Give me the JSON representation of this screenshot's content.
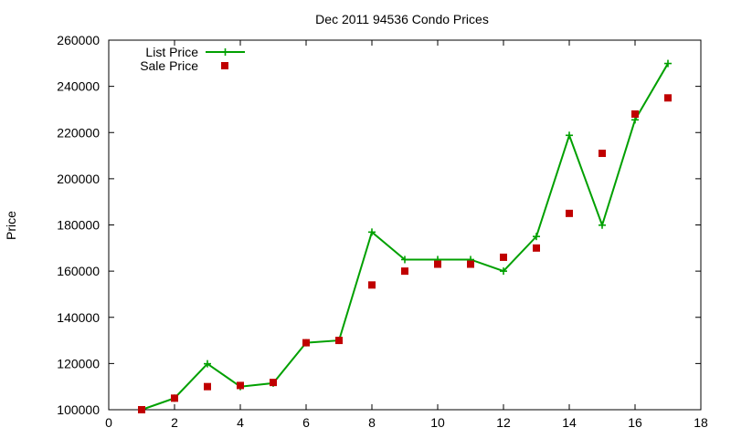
{
  "chart_data": {
    "type": "line",
    "title": "Dec 2011 94536 Condo Prices",
    "xlabel": "",
    "ylabel": "Price",
    "xlim": [
      0,
      18
    ],
    "ylim": [
      100000,
      260000
    ],
    "xticks": [
      0,
      2,
      4,
      6,
      8,
      10,
      12,
      14,
      16,
      18
    ],
    "yticks": [
      100000,
      120000,
      140000,
      160000,
      180000,
      200000,
      220000,
      240000,
      260000
    ],
    "grid": false,
    "legend_position": "top-left",
    "series": [
      {
        "name": "List Price",
        "style": "line-with-plus-markers",
        "color": "#00a000",
        "x": [
          1,
          2,
          3,
          4,
          5,
          6,
          7,
          8,
          9,
          10,
          11,
          12,
          13,
          14,
          15,
          16,
          17
        ],
        "y": [
          100000,
          105000,
          119900,
          110000,
          111500,
          129000,
          130000,
          176900,
          165000,
          165000,
          165000,
          160000,
          175000,
          218800,
          179900,
          225500,
          249900
        ]
      },
      {
        "name": "Sale Price",
        "style": "square-markers",
        "color": "#c00000",
        "x": [
          1,
          2,
          3,
          4,
          5,
          6,
          7,
          8,
          9,
          10,
          11,
          12,
          13,
          14,
          15,
          16,
          17
        ],
        "y": [
          100000,
          105000,
          110000,
          110500,
          111800,
          129000,
          130000,
          154000,
          160000,
          163000,
          163000,
          166000,
          170000,
          185000,
          211000,
          228000,
          235000
        ]
      }
    ]
  }
}
